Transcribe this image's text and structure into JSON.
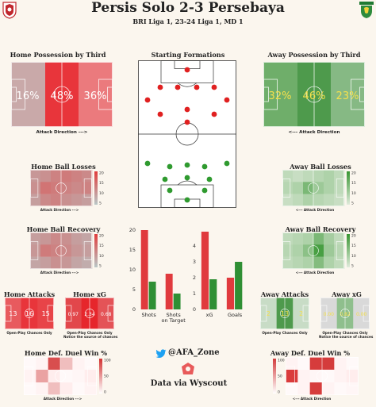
{
  "header": {
    "title": "Persis Solo 2-3 Persebaya",
    "subtitle": "BRI Liga 1, 23-24 Liga 1, MD 1",
    "away_logo_text": "PERSEBAYA"
  },
  "sections": {
    "home_possession": "Home Possession by Third",
    "away_possession": "Away Possession by Third",
    "formations": "Starting Formations",
    "home_ball_losses": "Home Ball Losses",
    "away_ball_losses": "Away Ball Losses",
    "home_ball_recovery": "Home Ball Recovery",
    "away_ball_recovery": "Away Ball Recovery",
    "home_attacks": "Home Attacks",
    "home_xg": "Home xG",
    "away_attacks": "Away Attacks",
    "away_xg": "Away xG",
    "home_def_duel": "Home Def. Duel Win %",
    "away_def_duel": "Away Def. Duel Win %"
  },
  "labels": {
    "attack_dir_home": "Attack Direction --->",
    "attack_dir_away": "<--- Attack Direction",
    "attack_dir_home_small": "Attack Direction --->",
    "attack_dir_away_small": "<--- Attack Direction",
    "open_play_only": "Open-Play Chances Only",
    "open_play_note": "Notice the source of chances",
    "twitter": "@AFA_Zone",
    "data_source": "Data via Wyscout"
  },
  "colors": {
    "home": "#e83a3a",
    "away": "#3a9a3a",
    "background": "#fbf6ee"
  },
  "possession": {
    "home": [
      "16%",
      "48%",
      "36%"
    ],
    "away": [
      "32%",
      "46%",
      "23%"
    ]
  },
  "home_attacks": [
    "13",
    "16",
    "15"
  ],
  "home_xg": [
    "0.97",
    "2.34",
    "0.68"
  ],
  "away_attacks": [
    "2",
    "13",
    "2"
  ],
  "away_xg": [
    "0.00",
    "0.82",
    "0.00"
  ],
  "colorbar_ticks": {
    "losses": [
      "20",
      "15",
      "10",
      "5"
    ],
    "recovery": [
      "20",
      "15",
      "10",
      "5"
    ],
    "duel": [
      "100",
      "50",
      "0"
    ]
  },
  "chart_data": [
    {
      "type": "bar",
      "categories": [
        "Shots",
        "Shots on Target"
      ],
      "series": [
        {
          "name": "Home",
          "values": [
            20,
            9
          ]
        },
        {
          "name": "Away",
          "values": [
            7,
            4
          ]
        }
      ],
      "ylim": [
        0,
        20
      ],
      "yticks": [
        "0",
        "5",
        "10",
        "15",
        "20"
      ]
    },
    {
      "type": "bar",
      "categories": [
        "xG",
        "Goals"
      ],
      "series": [
        {
          "name": "Home",
          "values": [
            4.9,
            2
          ]
        },
        {
          "name": "Away",
          "values": [
            1.9,
            3
          ]
        }
      ],
      "ylim": [
        0,
        5
      ],
      "yticks": [
        "0",
        "1",
        "2",
        "3",
        "4"
      ]
    }
  ]
}
